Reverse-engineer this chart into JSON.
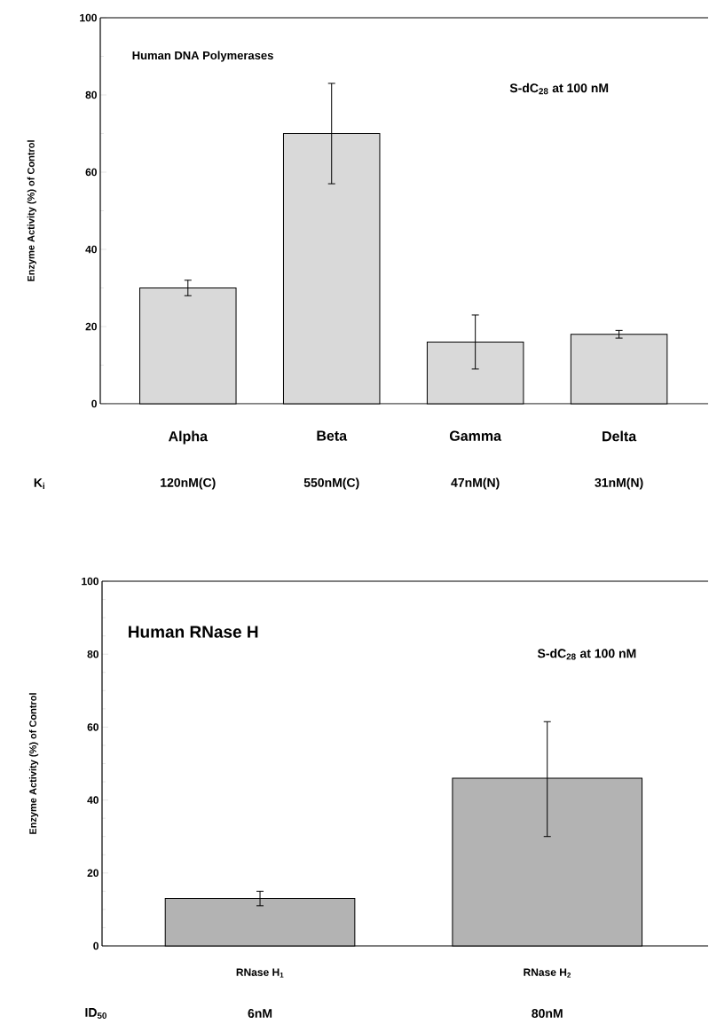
{
  "chart_data": [
    {
      "type": "bar",
      "title": "Human DNA Polymerases",
      "ylabel": "Enzyme Activity (%) of Control",
      "categories": [
        "Alpha",
        "Beta",
        "Gamma",
        "Delta"
      ],
      "values": [
        30,
        70,
        16,
        18
      ],
      "errors": [
        [
          28,
          32
        ],
        [
          57,
          83
        ],
        [
          9,
          23
        ],
        [
          17,
          19
        ]
      ],
      "color": "#d9d9d9",
      "ylim": [
        0,
        100
      ],
      "yticks": [
        0,
        20,
        40,
        60,
        80,
        100
      ],
      "annotations": [
        "S-dC$_{28}$ at 100 nM",
        "K$_{i}$",
        "120nM(C)",
        "550nM(C)",
        "47nM(N)",
        "31nM(N)"
      ]
    },
    {
      "type": "bar",
      "title": "Human RNase H",
      "ylabel": "Enzyme Activity (%) of Control",
      "categories": [
        "RNase H$_{1}$",
        "RNase H$_{2}$"
      ],
      "values": [
        13,
        46
      ],
      "errors": [
        [
          11,
          15
        ],
        [
          30,
          61.5
        ]
      ],
      "color": "#b3b3b3",
      "ylim": [
        0,
        100
      ],
      "yticks": [
        0,
        20,
        40,
        60,
        80,
        100
      ],
      "annotations": [
        "S-dC$_{28}$ at 100 nM",
        "ID$_{50}$",
        "6nM",
        "80nM"
      ]
    }
  ]
}
